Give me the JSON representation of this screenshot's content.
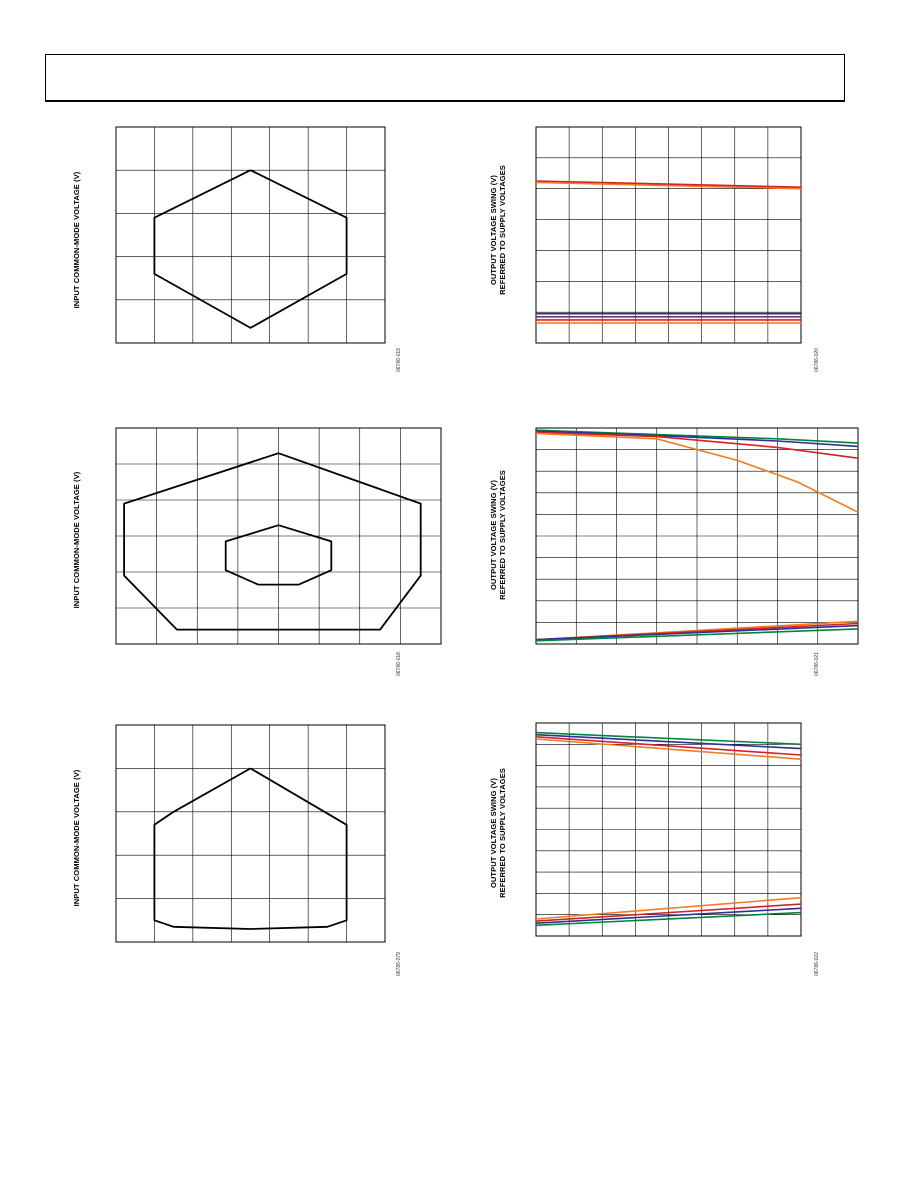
{
  "page": {
    "header_text": ""
  },
  "panels": [
    {
      "id": "p1",
      "ylabel": "INPUT COMMON-MODE VOLTAGE (V)",
      "ylabel2": "",
      "fignum": "06786-019"
    },
    {
      "id": "p2",
      "ylabel": "OUTPUT VOLTAGE SWING (V)",
      "ylabel2": "REFERRED TO SUPPLY VOLTAGES",
      "fignum": "06786-020"
    },
    {
      "id": "p3",
      "ylabel": "INPUT COMMON-MODE VOLTAGE (V)",
      "ylabel2": "",
      "fignum": "06786-018"
    },
    {
      "id": "p4",
      "ylabel": "OUTPUT VOLTAGE SWING (V)",
      "ylabel2": "REFERRED TO SUPPLY VOLTAGES",
      "fignum": "06786-021"
    },
    {
      "id": "p5",
      "ylabel": "INPUT COMMON-MODE VOLTAGE (V)",
      "ylabel2": "",
      "fignum": "06786-079"
    },
    {
      "id": "p6",
      "ylabel": "OUTPUT VOLTAGE SWING (V)",
      "ylabel2": "REFERRED TO SUPPLY VOLTAGES",
      "fignum": "06786-022"
    }
  ],
  "colors": {
    "orange": "#f47b20",
    "red": "#d2232a",
    "purple": "#7b2c83",
    "blue": "#2e3192",
    "green": "#00843d",
    "black": "#000000"
  },
  "chart_data": [
    {
      "type": "line",
      "ylabel": "INPUT COMMON-MODE VOLTAGE (V)",
      "grid": true,
      "xdiv": 7,
      "ydiv": 5,
      "series": [
        {
          "color": "#000000",
          "x": [
            3.5,
            6,
            6,
            3.5,
            1,
            1,
            3.5
          ],
          "y": [
            4,
            2.9,
            1.6,
            0.35,
            1.6,
            2.9,
            4
          ]
        }
      ]
    },
    {
      "type": "line",
      "ylabel": "OUTPUT VOLTAGE SWING (V) REFERRED TO SUPPLY VOLTAGES",
      "grid": true,
      "xdiv": 8,
      "ydiv": 7,
      "series": [
        {
          "color": "#f47b20",
          "x": [
            0,
            8
          ],
          "y": [
            5.2,
            5.0
          ]
        },
        {
          "color": "#d2232a",
          "x": [
            0,
            8
          ],
          "y": [
            5.25,
            5.05
          ]
        },
        {
          "color": "#2e3192",
          "x": [
            0,
            8
          ],
          "y": [
            0.95,
            0.95
          ]
        },
        {
          "color": "#7b2c83",
          "x": [
            0,
            8
          ],
          "y": [
            0.85,
            0.85
          ]
        },
        {
          "color": "#d2232a",
          "x": [
            0,
            8
          ],
          "y": [
            0.75,
            0.75
          ]
        },
        {
          "color": "#f47b20",
          "x": [
            0,
            8
          ],
          "y": [
            0.65,
            0.65
          ]
        }
      ]
    },
    {
      "type": "line",
      "ylabel": "INPUT COMMON-MODE VOLTAGE (V)",
      "grid": true,
      "xdiv": 8,
      "ydiv": 6,
      "series": [
        {
          "color": "#000000",
          "x": [
            4,
            7.5,
            7.5,
            6.5,
            4.5,
            3.5,
            1.5,
            0.2,
            0.2,
            4
          ],
          "y": [
            5.3,
            3.9,
            1.9,
            0.4,
            0.4,
            0.4,
            0.4,
            1.9,
            3.9,
            5.3
          ]
        },
        {
          "color": "#000000",
          "x": [
            4,
            5.3,
            5.3,
            4.5,
            3.5,
            2.7,
            2.7,
            4
          ],
          "y": [
            3.3,
            2.85,
            2.05,
            1.65,
            1.65,
            2.05,
            2.85,
            3.3
          ]
        }
      ]
    },
    {
      "type": "line",
      "ylabel": "OUTPUT VOLTAGE SWING (V) REFERRED TO SUPPLY VOLTAGES",
      "grid": true,
      "xdiv": 8,
      "ydiv": 10,
      "series": [
        {
          "color": "#00843d",
          "x": [
            0,
            3,
            6,
            8
          ],
          "y": [
            9.9,
            9.7,
            9.5,
            9.3
          ]
        },
        {
          "color": "#2e3192",
          "x": [
            0,
            3,
            6,
            8
          ],
          "y": [
            9.85,
            9.65,
            9.4,
            9.15
          ]
        },
        {
          "color": "#d2232a",
          "x": [
            0,
            3,
            6,
            8
          ],
          "y": [
            9.8,
            9.6,
            9.1,
            8.6
          ]
        },
        {
          "color": "#f47b20",
          "x": [
            0,
            3,
            5,
            6.5,
            8
          ],
          "y": [
            9.75,
            9.5,
            8.5,
            7.5,
            6.1
          ]
        },
        {
          "color": "#f47b20",
          "x": [
            0,
            8
          ],
          "y": [
            0.2,
            1.05
          ]
        },
        {
          "color": "#d2232a",
          "x": [
            0,
            8
          ],
          "y": [
            0.2,
            0.95
          ]
        },
        {
          "color": "#2e3192",
          "x": [
            0,
            8
          ],
          "y": [
            0.2,
            0.85
          ]
        },
        {
          "color": "#00843d",
          "x": [
            0,
            8
          ],
          "y": [
            0.15,
            0.7
          ]
        }
      ]
    },
    {
      "type": "line",
      "ylabel": "INPUT COMMON-MODE VOLTAGE (V)",
      "grid": true,
      "xdiv": 7,
      "ydiv": 5,
      "series": [
        {
          "color": "#000000",
          "x": [
            3.5,
            6,
            6,
            5.5,
            3.5,
            1.5,
            1,
            1,
            1.5,
            3.5
          ],
          "y": [
            4,
            2.7,
            0.5,
            0.35,
            0.3,
            0.35,
            0.5,
            2.7,
            3,
            4
          ]
        }
      ]
    },
    {
      "type": "line",
      "ylabel": "OUTPUT VOLTAGE SWING (V) REFERRED TO SUPPLY VOLTAGES",
      "grid": true,
      "xdiv": 8,
      "ydiv": 10,
      "series": [
        {
          "color": "#00843d",
          "x": [
            0,
            8
          ],
          "y": [
            9.55,
            9.0
          ]
        },
        {
          "color": "#2e3192",
          "x": [
            0,
            8
          ],
          "y": [
            9.45,
            8.8
          ]
        },
        {
          "color": "#d2232a",
          "x": [
            0,
            8
          ],
          "y": [
            9.35,
            8.5
          ]
        },
        {
          "color": "#f47b20",
          "x": [
            0,
            8
          ],
          "y": [
            9.25,
            8.3
          ]
        },
        {
          "color": "#f47b20",
          "x": [
            0,
            8
          ],
          "y": [
            0.8,
            1.8
          ]
        },
        {
          "color": "#d2232a",
          "x": [
            0,
            8
          ],
          "y": [
            0.7,
            1.5
          ]
        },
        {
          "color": "#2e3192",
          "x": [
            0,
            8
          ],
          "y": [
            0.6,
            1.3
          ]
        },
        {
          "color": "#00843d",
          "x": [
            0,
            8
          ],
          "y": [
            0.5,
            1.1
          ]
        }
      ]
    }
  ]
}
